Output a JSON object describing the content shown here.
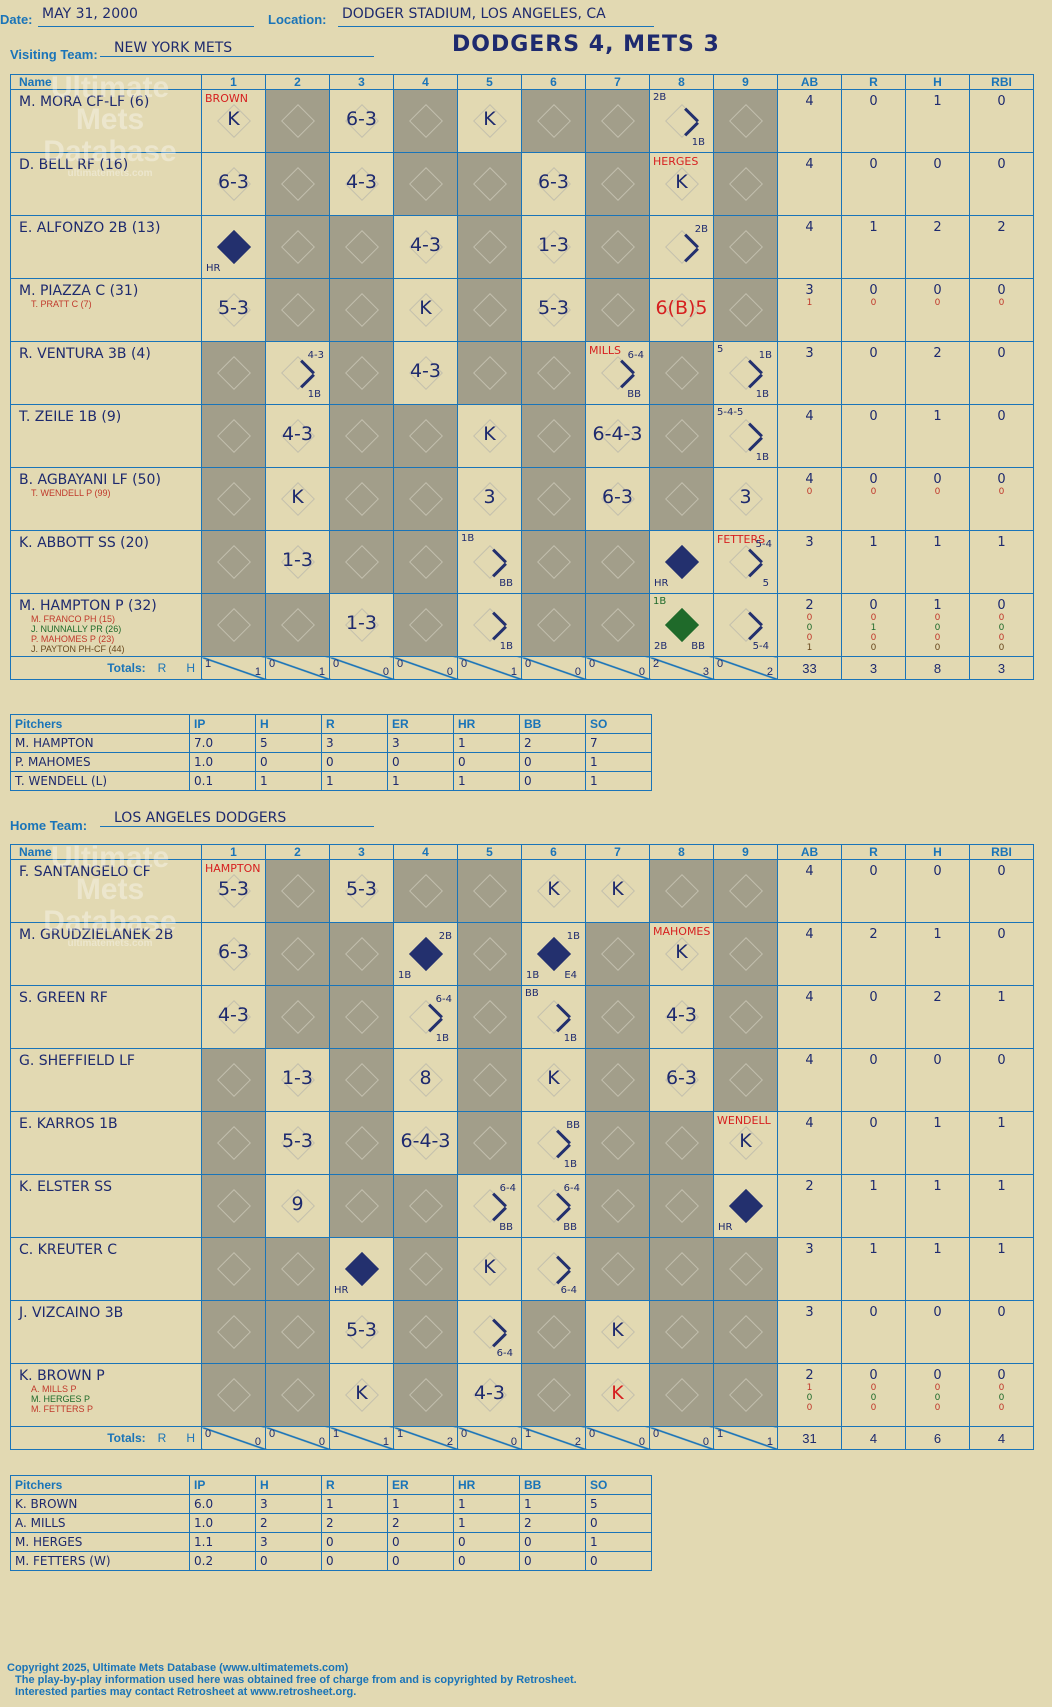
{
  "header": {
    "date_label": "Date:",
    "date": "MAY 31, 2000",
    "location_label": "Location:",
    "location": "DODGER STADIUM, LOS ANGELES, CA",
    "title": "DODGERS 4, METS 3"
  },
  "watermark": {
    "line1": "Ultimate",
    "line2": "Mets",
    "line3": "Database",
    "line4": "ultimatemets.com"
  },
  "columns": {
    "name": "Name",
    "innings": [
      "1",
      "2",
      "3",
      "4",
      "5",
      "6",
      "7",
      "8",
      "9"
    ],
    "stats": [
      "AB",
      "R",
      "H",
      "RBI"
    ]
  },
  "totals_label": "Totals:",
  "totals_r": "R",
  "totals_h": "H",
  "pitcher_cols": [
    "Pitchers",
    "IP",
    "H",
    "R",
    "ER",
    "HR",
    "BB",
    "SO"
  ],
  "visitor": {
    "label": "Visiting Team:",
    "name": "NEW YORK METS",
    "batters": [
      {
        "name": "M. MORA CF-LF (6)",
        "subs": [],
        "stats": [
          "4",
          "0",
          "1",
          "0"
        ],
        "substats": []
      },
      {
        "name": "D. BELL RF (16)",
        "subs": [],
        "stats": [
          "4",
          "0",
          "0",
          "0"
        ],
        "substats": []
      },
      {
        "name": "E. ALFONZO 2B (13)",
        "subs": [],
        "stats": [
          "4",
          "1",
          "2",
          "2"
        ],
        "substats": []
      },
      {
        "name": "M. PIAZZA C (31)",
        "subs": [
          "T. PRATT C (7)"
        ],
        "stats": [
          "3",
          "0",
          "0",
          "0"
        ],
        "substats": [
          [
            "1",
            "0",
            "0",
            "0"
          ]
        ]
      },
      {
        "name": "R. VENTURA 3B (4)",
        "subs": [],
        "stats": [
          "3",
          "0",
          "2",
          "0"
        ],
        "substats": []
      },
      {
        "name": "T. ZEILE 1B (9)",
        "subs": [],
        "stats": [
          "4",
          "0",
          "1",
          "0"
        ],
        "substats": []
      },
      {
        "name": "B. AGBAYANI LF (50)",
        "subs": [
          "T. WENDELL P (99)"
        ],
        "stats": [
          "4",
          "0",
          "0",
          "0"
        ],
        "substats": [
          [
            "0",
            "0",
            "0",
            "0"
          ]
        ]
      },
      {
        "name": "K. ABBOTT SS (20)",
        "subs": [],
        "stats": [
          "3",
          "1",
          "1",
          "1"
        ],
        "substats": []
      },
      {
        "name": "M. HAMPTON P (32)",
        "subs": [
          "M. FRANCO PH (15)",
          "J. NUNNALLY PR (26)",
          "P. MAHOMES P (23)",
          "J. PAYTON PH-CF (44)"
        ],
        "stats": [
          "2",
          "0",
          "1",
          "0"
        ],
        "substats": [
          [
            "0",
            "0",
            "0",
            "0"
          ],
          [
            "0",
            "1",
            "0",
            "0"
          ],
          [
            "0",
            "0",
            "0",
            "0"
          ],
          [
            "1",
            "0",
            "0",
            "0"
          ]
        ]
      }
    ],
    "totals_innings": [
      [
        "1",
        "1"
      ],
      [
        "0",
        "1"
      ],
      [
        "0",
        "0"
      ],
      [
        "0",
        "0"
      ],
      [
        "0",
        "1"
      ],
      [
        "0",
        "0"
      ],
      [
        "0",
        "0"
      ],
      [
        "2",
        "3"
      ],
      [
        "0",
        "2"
      ]
    ],
    "totals_stats": [
      "33",
      "3",
      "8",
      "3"
    ],
    "pitchers": [
      [
        "M. HAMPTON",
        "7.0",
        "5",
        "3",
        "3",
        "1",
        "2",
        "7"
      ],
      [
        "P. MAHOMES",
        "1.0",
        "0",
        "0",
        "0",
        "0",
        "0",
        "1"
      ],
      [
        "T. WENDELL (L)",
        "0.1",
        "1",
        "1",
        "1",
        "1",
        "0",
        "1"
      ]
    ]
  },
  "home": {
    "label": "Home Team:",
    "name": "LOS ANGELES DODGERS",
    "batters": [
      {
        "name": "F. SANTANGELO CF",
        "subs": [],
        "stats": [
          "4",
          "0",
          "0",
          "0"
        ],
        "substats": []
      },
      {
        "name": "M. GRUDZIELANEK 2B",
        "subs": [],
        "stats": [
          "4",
          "2",
          "1",
          "0"
        ],
        "substats": []
      },
      {
        "name": "S. GREEN RF",
        "subs": [],
        "stats": [
          "4",
          "0",
          "2",
          "1"
        ],
        "substats": []
      },
      {
        "name": "G. SHEFFIELD LF",
        "subs": [],
        "stats": [
          "4",
          "0",
          "0",
          "0"
        ],
        "substats": []
      },
      {
        "name": "E. KARROS 1B",
        "subs": [],
        "stats": [
          "4",
          "0",
          "1",
          "1"
        ],
        "substats": []
      },
      {
        "name": "K. ELSTER SS",
        "subs": [],
        "stats": [
          "2",
          "1",
          "1",
          "1"
        ],
        "substats": []
      },
      {
        "name": "C. KREUTER C",
        "subs": [],
        "stats": [
          "3",
          "1",
          "1",
          "1"
        ],
        "substats": []
      },
      {
        "name": "J. VIZCAINO 3B",
        "subs": [],
        "stats": [
          "3",
          "0",
          "0",
          "0"
        ],
        "substats": []
      },
      {
        "name": "K. BROWN P",
        "subs": [
          "A. MILLS P",
          "M. HERGES P",
          "M. FETTERS P"
        ],
        "stats": [
          "2",
          "0",
          "0",
          "0"
        ],
        "substats": [
          [
            "1",
            "0",
            "0",
            "0"
          ],
          [
            "0",
            "0",
            "0",
            "0"
          ],
          [
            "0",
            "0",
            "0",
            "0"
          ]
        ]
      }
    ],
    "totals_innings": [
      [
        "0",
        "0"
      ],
      [
        "0",
        "0"
      ],
      [
        "1",
        "1"
      ],
      [
        "1",
        "2"
      ],
      [
        "0",
        "0"
      ],
      [
        "1",
        "2"
      ],
      [
        "0",
        "0"
      ],
      [
        "0",
        "0"
      ],
      [
        "1",
        "1"
      ]
    ],
    "totals_stats": [
      "31",
      "4",
      "6",
      "4"
    ],
    "pitchers": [
      [
        "K. BROWN",
        "6.0",
        "3",
        "1",
        "1",
        "1",
        "1",
        "5"
      ],
      [
        "A. MILLS",
        "1.0",
        "2",
        "2",
        "2",
        "1",
        "2",
        "0"
      ],
      [
        "M. HERGES",
        "1.1",
        "3",
        "0",
        "0",
        "0",
        "0",
        "1"
      ],
      [
        "M. FETTERS (W)",
        "0.2",
        "0",
        "0",
        "0",
        "0",
        "0",
        "0"
      ]
    ]
  },
  "plays": {
    "visitor": [
      [
        {
          "p": "K",
          "tl": "BROWN",
          "red": true
        },
        {
          "sh": 1
        },
        {
          "p": "6-3"
        },
        {
          "sh": 1
        },
        {
          "p": "K"
        },
        {
          "sh": 1
        },
        {
          "sh": 1
        },
        {
          "tl": "2B",
          "br": "1B",
          "path": 1
        },
        {
          "sh": 1
        }
      ],
      [
        {
          "p": "6-3"
        },
        {
          "sh": 1
        },
        {
          "p": "4-3"
        },
        {
          "sh": 1
        },
        {
          "sh": 1
        },
        {
          "p": "6-3"
        },
        {
          "sh": 1
        },
        {
          "p": "K",
          "tl": "HERGES",
          "red": true
        },
        {
          "sh": 1
        }
      ],
      [
        {
          "run": 1,
          "bl": "HR"
        },
        {
          "sh": 1
        },
        {
          "sh": 1
        },
        {
          "p": "4-3"
        },
        {
          "sh": 1
        },
        {
          "p": "1-3"
        },
        {
          "sh": 1
        },
        {
          "tr": "2B",
          "path": 1
        },
        {
          "sh": 1
        }
      ],
      [
        {
          "p": "5-3"
        },
        {
          "sh": 1
        },
        {
          "sh": 1
        },
        {
          "p": "K"
        },
        {
          "sh": 1
        },
        {
          "p": "5-3"
        },
        {
          "sh": 1
        },
        {
          "p": "6(B)5",
          "redplay": true
        },
        {
          "sh": 1
        }
      ],
      [
        {
          "sh": 1
        },
        {
          "tr": "4-3",
          "br": "1B",
          "path": 1
        },
        {
          "sh": 1
        },
        {
          "p": "4-3"
        },
        {
          "sh": 1
        },
        {
          "sh": 1
        },
        {
          "tl": "MILLS",
          "red": true,
          "tr": "6-4",
          "br": "BB",
          "path": 1
        },
        {
          "sh": 1
        },
        {
          "tl": "5",
          "tr": "1B",
          "br": "1B",
          "path": 1
        }
      ],
      [
        {
          "sh": 1
        },
        {
          "p": "4-3"
        },
        {
          "sh": 1
        },
        {
          "sh": 1
        },
        {
          "p": "K"
        },
        {
          "sh": 1
        },
        {
          "p": "6-4-3"
        },
        {
          "sh": 1
        },
        {
          "tl": "5-4-5",
          "br": "1B",
          "path": 1
        }
      ],
      [
        {
          "sh": 1
        },
        {
          "p": "K"
        },
        {
          "sh": 1
        },
        {
          "sh": 1
        },
        {
          "p": "3"
        },
        {
          "sh": 1
        },
        {
          "p": "6-3"
        },
        {
          "sh": 1
        },
        {
          "p": "3"
        }
      ],
      [
        {
          "sh": 1
        },
        {
          "p": "1-3"
        },
        {
          "sh": 1
        },
        {
          "sh": 1
        },
        {
          "tl": "1B",
          "br": "BB",
          "path": 1
        },
        {
          "sh": 1
        },
        {
          "sh": 1
        },
        {
          "run": 1,
          "bl": "HR"
        },
        {
          "tl": "FETTERS",
          "red": true,
          "tr": "5-4",
          "br": "5",
          "path": 1
        }
      ],
      [
        {
          "sh": 1
        },
        {
          "sh": 1
        },
        {
          "p": "1-3"
        },
        {
          "sh": 1
        },
        {
          "br": "1B",
          "path": 1
        },
        {
          "sh": 1
        },
        {
          "sh": 1
        },
        {
          "run": 2,
          "tl": "1B",
          "green": true,
          "bl": "2B",
          "br": "BB"
        },
        {
          "br": "5-4",
          "path": 1
        }
      ]
    ],
    "home": [
      [
        {
          "p": "5-3",
          "tl": "HAMPTON",
          "red": true
        },
        {
          "sh": 1
        },
        {
          "p": "5-3"
        },
        {
          "sh": 1
        },
        {
          "sh": 1
        },
        {
          "p": "K"
        },
        {
          "p": "K"
        },
        {
          "sh": 1
        },
        {
          "sh": 1
        }
      ],
      [
        {
          "p": "6-3"
        },
        {
          "sh": 1
        },
        {
          "sh": 1
        },
        {
          "run": 1,
          "tr": "2B",
          "bl": "1B"
        },
        {
          "sh": 1
        },
        {
          "run": 1,
          "tr": "1B",
          "bl": "1B",
          "br": "E4"
        },
        {
          "sh": 1
        },
        {
          "p": "K",
          "tl": "MAHOMES",
          "red": true
        },
        {
          "sh": 1
        }
      ],
      [
        {
          "p": "4-3"
        },
        {
          "sh": 1
        },
        {
          "sh": 1
        },
        {
          "tr": "6-4",
          "br": "1B",
          "path": 1
        },
        {
          "sh": 1
        },
        {
          "tl": "BB",
          "br": "1B",
          "path": 1
        },
        {
          "sh": 1
        },
        {
          "p": "4-3"
        },
        {
          "sh": 1
        }
      ],
      [
        {
          "sh": 1
        },
        {
          "p": "1-3"
        },
        {
          "sh": 1
        },
        {
          "p": "8"
        },
        {
          "sh": 1
        },
        {
          "p": "K"
        },
        {
          "sh": 1
        },
        {
          "p": "6-3"
        },
        {
          "sh": 1
        }
      ],
      [
        {
          "sh": 1
        },
        {
          "p": "5-3"
        },
        {
          "sh": 1
        },
        {
          "p": "6-4-3"
        },
        {
          "sh": 1
        },
        {
          "tr": "BB",
          "br": "1B",
          "path": 1
        },
        {
          "sh": 1
        },
        {
          "sh": 1
        },
        {
          "p": "K",
          "tl": "WENDELL",
          "red": true
        }
      ],
      [
        {
          "sh": 1
        },
        {
          "p": "9"
        },
        {
          "sh": 1
        },
        {
          "sh": 1
        },
        {
          "tr": "6-4",
          "br": "BB",
          "path": 1
        },
        {
          "tr": "6-4",
          "br": "BB",
          "path": 1
        },
        {
          "sh": 1
        },
        {
          "sh": 1
        },
        {
          "run": 1,
          "bl": "HR"
        }
      ],
      [
        {
          "sh": 1
        },
        {
          "sh": 1
        },
        {
          "run": 1,
          "bl": "HR"
        },
        {
          "sh": 1
        },
        {
          "p": "K"
        },
        {
          "br": "6-4",
          "path": 1
        },
        {
          "sh": 1
        },
        {
          "sh": 1
        },
        {
          "sh": 1
        }
      ],
      [
        {
          "sh": 1
        },
        {
          "sh": 1
        },
        {
          "p": "5-3"
        },
        {
          "sh": 1
        },
        {
          "br": "6-4",
          "path": 1
        },
        {
          "sh": 1
        },
        {
          "p": "K"
        },
        {
          "sh": 1
        },
        {
          "sh": 1
        }
      ],
      [
        {
          "sh": 1
        },
        {
          "sh": 1
        },
        {
          "p": "K"
        },
        {
          "sh": 1
        },
        {
          "p": "4-3"
        },
        {
          "sh": 1
        },
        {
          "p": "K",
          "redplay": true
        },
        {
          "sh": 1
        },
        {
          "sh": 1
        }
      ]
    ]
  },
  "footer": {
    "line1": "Copyright 2025, Ultimate Mets Database (www.ultimatemets.com)",
    "line2": "The play-by-play information used here was obtained free of charge from and is copyrighted by Retrosheet.",
    "line3": "Interested parties may contact Retrosheet at www.retrosheet.org."
  },
  "colors": {
    "background": "#e2d9b2",
    "shaded": "#a29e8a",
    "ink": "#1e2a6e",
    "grid": "#1a74b8",
    "red": "#d61f1f",
    "green": "#1f6a2a"
  }
}
